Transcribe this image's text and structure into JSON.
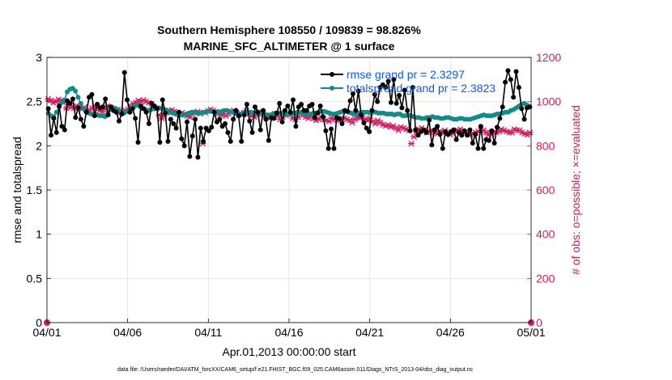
{
  "chart_data": {
    "type": "line",
    "title_line1": "Southern Hemisphere 108550 / 109839 = 98.826%",
    "title_line2": "MARINE_SFC_ALTIMETER @ 1 surface",
    "xlabel": "Apr.01,2013 00:00:00 start",
    "ylabel_left": "rmse and totalspread",
    "ylabel_right": "# of obs: o=possible; ×=evaluated",
    "footnote": "data file: /Users/raeder/DAI/ATM_forcXX/CAM6_setup/f.e21.FHIST_BGC.f09_025.CAM6assim.011/Diags_NTrS_2013-04/obs_diag_output.nc",
    "xlim": [
      0,
      30
    ],
    "ylim_left": [
      0,
      3
    ],
    "ylim_right": [
      0,
      1200
    ],
    "x_ticks": [
      {
        "value": 0,
        "label": "04/01"
      },
      {
        "value": 5,
        "label": "04/06"
      },
      {
        "value": 10,
        "label": "04/11"
      },
      {
        "value": 15,
        "label": "04/16"
      },
      {
        "value": 20,
        "label": "04/21"
      },
      {
        "value": 25,
        "label": "04/26"
      },
      {
        "value": 30,
        "label": "05/01"
      }
    ],
    "y_ticks_left": [
      "0",
      "0.5",
      "1",
      "1.5",
      "2",
      "2.5",
      "3"
    ],
    "y_ticks_right": [
      "0",
      "200",
      "400",
      "600",
      "800",
      "1000",
      "1200"
    ],
    "grid": true,
    "legend_position": "top-right",
    "colors": {
      "rmse": "#000000",
      "spread": "#0e8c8a",
      "obs": "#d81b60",
      "legend_text": "#0a5af5"
    },
    "series": [
      {
        "name": "rmse grand pr = 2.3297",
        "key": "rmse",
        "axis": "left",
        "values": [
          2.42,
          2.12,
          2.31,
          2.15,
          2.45,
          2.22,
          2.18,
          2.51,
          2.48,
          2.53,
          2.32,
          2.43,
          2.3,
          2.22,
          2.38,
          2.55,
          2.58,
          2.34,
          2.47,
          2.43,
          2.44,
          2.53,
          2.35,
          2.44,
          2.4,
          2.38,
          2.28,
          2.36,
          2.83,
          2.52,
          2.38,
          2.42,
          2.31,
          2.04,
          2.45,
          2.42,
          2.38,
          2.25,
          2.48,
          2.45,
          2.42,
          2.04,
          2.52,
          2.37,
          2.05,
          2.3,
          2.25,
          2.2,
          2.38,
          2.08,
          2.0,
          2.27,
          1.88,
          2.11,
          2.3,
          1.87,
          2.2,
          2.05,
          2.2,
          2.17,
          2.21,
          2.38,
          2.27,
          2.3,
          2.22,
          2.25,
          2.15,
          2.05,
          2.3,
          2.4,
          2.34,
          2.05,
          2.35,
          2.47,
          2.28,
          2.15,
          2.44,
          2.38,
          2.18,
          2.4,
          2.3,
          2.06,
          2.32,
          2.31,
          2.37,
          2.48,
          2.27,
          2.4,
          2.45,
          2.38,
          2.52,
          2.22,
          2.44,
          2.47,
          2.4,
          2.4,
          2.45,
          2.47,
          2.32,
          2.37,
          2.45,
          2.33,
          2.17,
          1.97,
          2.19,
          1.97,
          2.32,
          2.31,
          2.25,
          2.4,
          2.39,
          2.51,
          2.59,
          2.4,
          2.62,
          2.35,
          2.26,
          2.2,
          2.16,
          2.4,
          2.58,
          2.5,
          2.66,
          2.69,
          2.66,
          2.73,
          2.49,
          2.75,
          2.48,
          2.57,
          2.43,
          2.63,
          2.4,
          2.17,
          2.66,
          2.18,
          2.12,
          2.16,
          2.18,
          2.15,
          2.29,
          2.01,
          2.18,
          2.22,
          2.13,
          1.97,
          2.16,
          2.13,
          2.16,
          2.18,
          2.07,
          2.15,
          2.12,
          2.17,
          2.12,
          2.18,
          2.03,
          2.13,
          1.97,
          2.22,
          1.97,
          2.07,
          2.06,
          2.17,
          2.03,
          2.21,
          2.31,
          2.44,
          2.72,
          2.85,
          2.75,
          2.55,
          2.84,
          2.66,
          2.42,
          2.3,
          2.43,
          2.44
        ]
      },
      {
        "name": "totalspread grand pr = 2.3823",
        "key": "spread",
        "axis": "left",
        "values": [
          2.37,
          2.34,
          2.33,
          2.38,
          2.44,
          2.49,
          2.52,
          2.61,
          2.64,
          2.65,
          2.62,
          2.55,
          2.48,
          2.42,
          2.39,
          2.37,
          2.36,
          2.35,
          2.35,
          2.34,
          2.34,
          2.33,
          2.37,
          2.41,
          2.43,
          2.42,
          2.4,
          2.38,
          2.37,
          2.39,
          2.41,
          2.44,
          2.45,
          2.46,
          2.44,
          2.42,
          2.41,
          2.4,
          2.41,
          2.42,
          2.43,
          2.43,
          2.42,
          2.41,
          2.4,
          2.38,
          2.37,
          2.36,
          2.35,
          2.35,
          2.35,
          2.36,
          2.37,
          2.38,
          2.38,
          2.37,
          2.37,
          2.38,
          2.38,
          2.39,
          2.39,
          2.39,
          2.38,
          2.38,
          2.39,
          2.4,
          2.4,
          2.39,
          2.38,
          2.37,
          2.36,
          2.36,
          2.37,
          2.38,
          2.38,
          2.38,
          2.37,
          2.37,
          2.37,
          2.37,
          2.36,
          2.35,
          2.35,
          2.36,
          2.37,
          2.37,
          2.37,
          2.37,
          2.36,
          2.36,
          2.36,
          2.37,
          2.38,
          2.38,
          2.37,
          2.36,
          2.36,
          2.36,
          2.37,
          2.37,
          2.38,
          2.39,
          2.39,
          2.38,
          2.37,
          2.36,
          2.36,
          2.37,
          2.38,
          2.39,
          2.39,
          2.38,
          2.37,
          2.36,
          2.36,
          2.37,
          2.38,
          2.38,
          2.38,
          2.37,
          2.38,
          2.38,
          2.37,
          2.37,
          2.37,
          2.36,
          2.36,
          2.36,
          2.35,
          2.36,
          2.36,
          2.34,
          2.34,
          2.35,
          2.34,
          2.33,
          2.32,
          2.32,
          2.31,
          2.31,
          2.32,
          2.32,
          2.33,
          2.32,
          2.32,
          2.31,
          2.31,
          2.32,
          2.32,
          2.31,
          2.3,
          2.3,
          2.31,
          2.31,
          2.3,
          2.3,
          2.3,
          2.31,
          2.32,
          2.33,
          2.34,
          2.35,
          2.34,
          2.34,
          2.34,
          2.35,
          2.36,
          2.36,
          2.37,
          2.38,
          2.38,
          2.4,
          2.41,
          2.43,
          2.45,
          2.47,
          2.48,
          2.46,
          2.44
        ]
      },
      {
        "name": "obs evaluated",
        "key": "obs",
        "axis": "right",
        "values": [
          1012,
          1005,
          995,
          1000,
          1010,
          1005,
          995,
          970,
          985,
          975,
          970,
          980,
          978,
          965,
          975,
          958,
          960,
          970,
          980,
          975,
          960,
          955,
          965,
          980,
          975,
          968,
          960,
          965,
          950,
          955,
          960,
          965,
          980,
          990,
          995,
          1005,
          1000,
          1008,
          1000,
          995,
          990,
          975,
          968,
          940,
          925,
          935,
          950,
          960,
          962,
          955,
          950,
          945,
          950,
          940,
          935,
          930,
          945,
          950,
          955,
          945,
          810,
          950,
          958,
          965,
          960,
          955,
          945,
          940,
          945,
          935,
          945,
          955,
          960,
          950,
          940,
          945,
          950,
          960,
          945,
          935,
          930,
          940,
          955,
          945,
          935,
          930,
          925,
          935,
          945,
          935,
          920,
          930,
          940,
          945,
          940,
          925,
          920,
          930,
          945,
          940,
          930,
          925,
          935,
          925,
          915,
          920,
          930,
          920,
          915,
          910,
          925,
          920,
          915,
          918,
          920,
          925,
          920,
          915,
          905,
          920,
          930,
          925,
          935,
          920,
          915,
          925,
          910,
          900,
          915,
          905,
          895,
          890,
          895,
          885,
          890,
          880,
          870,
          885,
          880,
          875,
          870,
          810,
          840,
          860,
          875,
          880,
          870,
          860,
          865,
          870,
          860,
          855,
          865,
          860,
          870,
          855,
          850,
          860,
          865,
          870,
          875,
          865,
          860,
          855,
          850,
          855,
          860,
          865,
          870,
          870,
          860,
          850,
          855,
          860,
          860,
          865,
          875,
          870,
          865,
          860,
          860,
          875,
          870,
          870,
          860,
          855,
          850,
          860
        ]
      }
    ],
    "obs_possible_endpoints": [
      {
        "x": 0,
        "value": 0
      },
      {
        "x": 30,
        "value": 0
      }
    ]
  }
}
